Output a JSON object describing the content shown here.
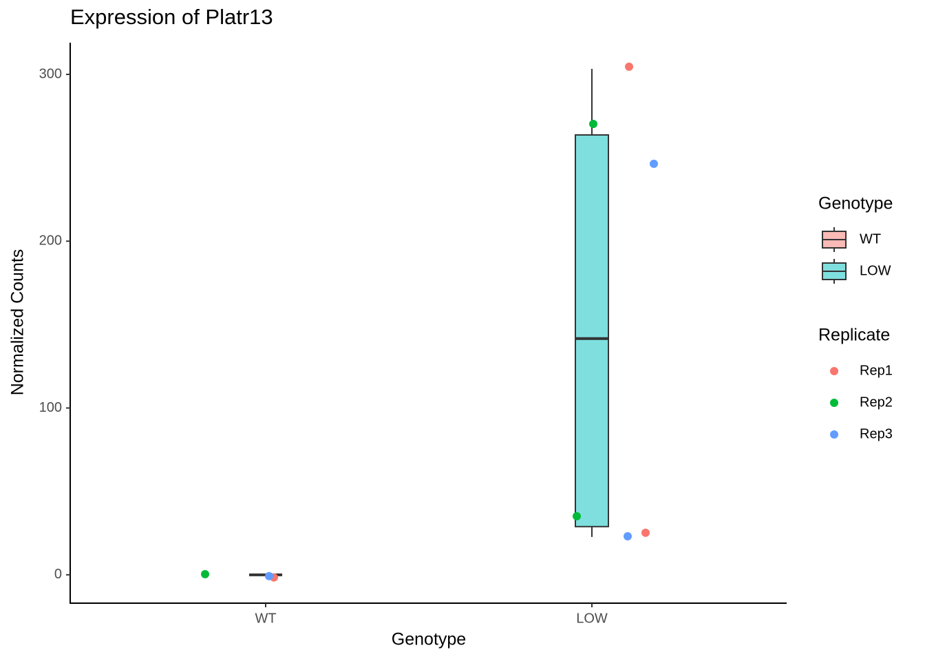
{
  "chart_data": {
    "type": "box",
    "title": "Expression of Platr13",
    "x_label": "Genotype",
    "y_label": "Normalized Counts",
    "categories": [
      "WT",
      "LOW"
    ],
    "ylim": [
      -17,
      319
    ],
    "yticks": [
      0,
      100,
      200,
      300
    ],
    "boxes": [
      {
        "min": 0,
        "q1": 0,
        "median": 0,
        "q3": 0,
        "max": 0
      },
      {
        "min": 22.7,
        "q1": 28.9,
        "median": 141.6,
        "q3": 263.7,
        "max": 303.3
      }
    ],
    "box_colors": [
      "#FBBAB6",
      "#7FDFDF"
    ],
    "box_legend_title": "Genotype",
    "point_legend_title": "Replicate",
    "series": [
      {
        "name": "Rep1",
        "color": "#F8766D",
        "x": [
          "WT",
          "LOW",
          "LOW"
        ],
        "values": [
          -1.6,
          304.6,
          25.2
        ]
      },
      {
        "name": "Rep2",
        "color": "#00BA38",
        "x": [
          "WT",
          "LOW",
          "LOW"
        ],
        "values": [
          0.4,
          270.3,
          35.1
        ]
      },
      {
        "name": "Rep3",
        "color": "#619CFF",
        "x": [
          "WT",
          "LOW",
          "LOW"
        ],
        "values": [
          -0.8,
          246.4,
          23.1
        ]
      }
    ]
  }
}
